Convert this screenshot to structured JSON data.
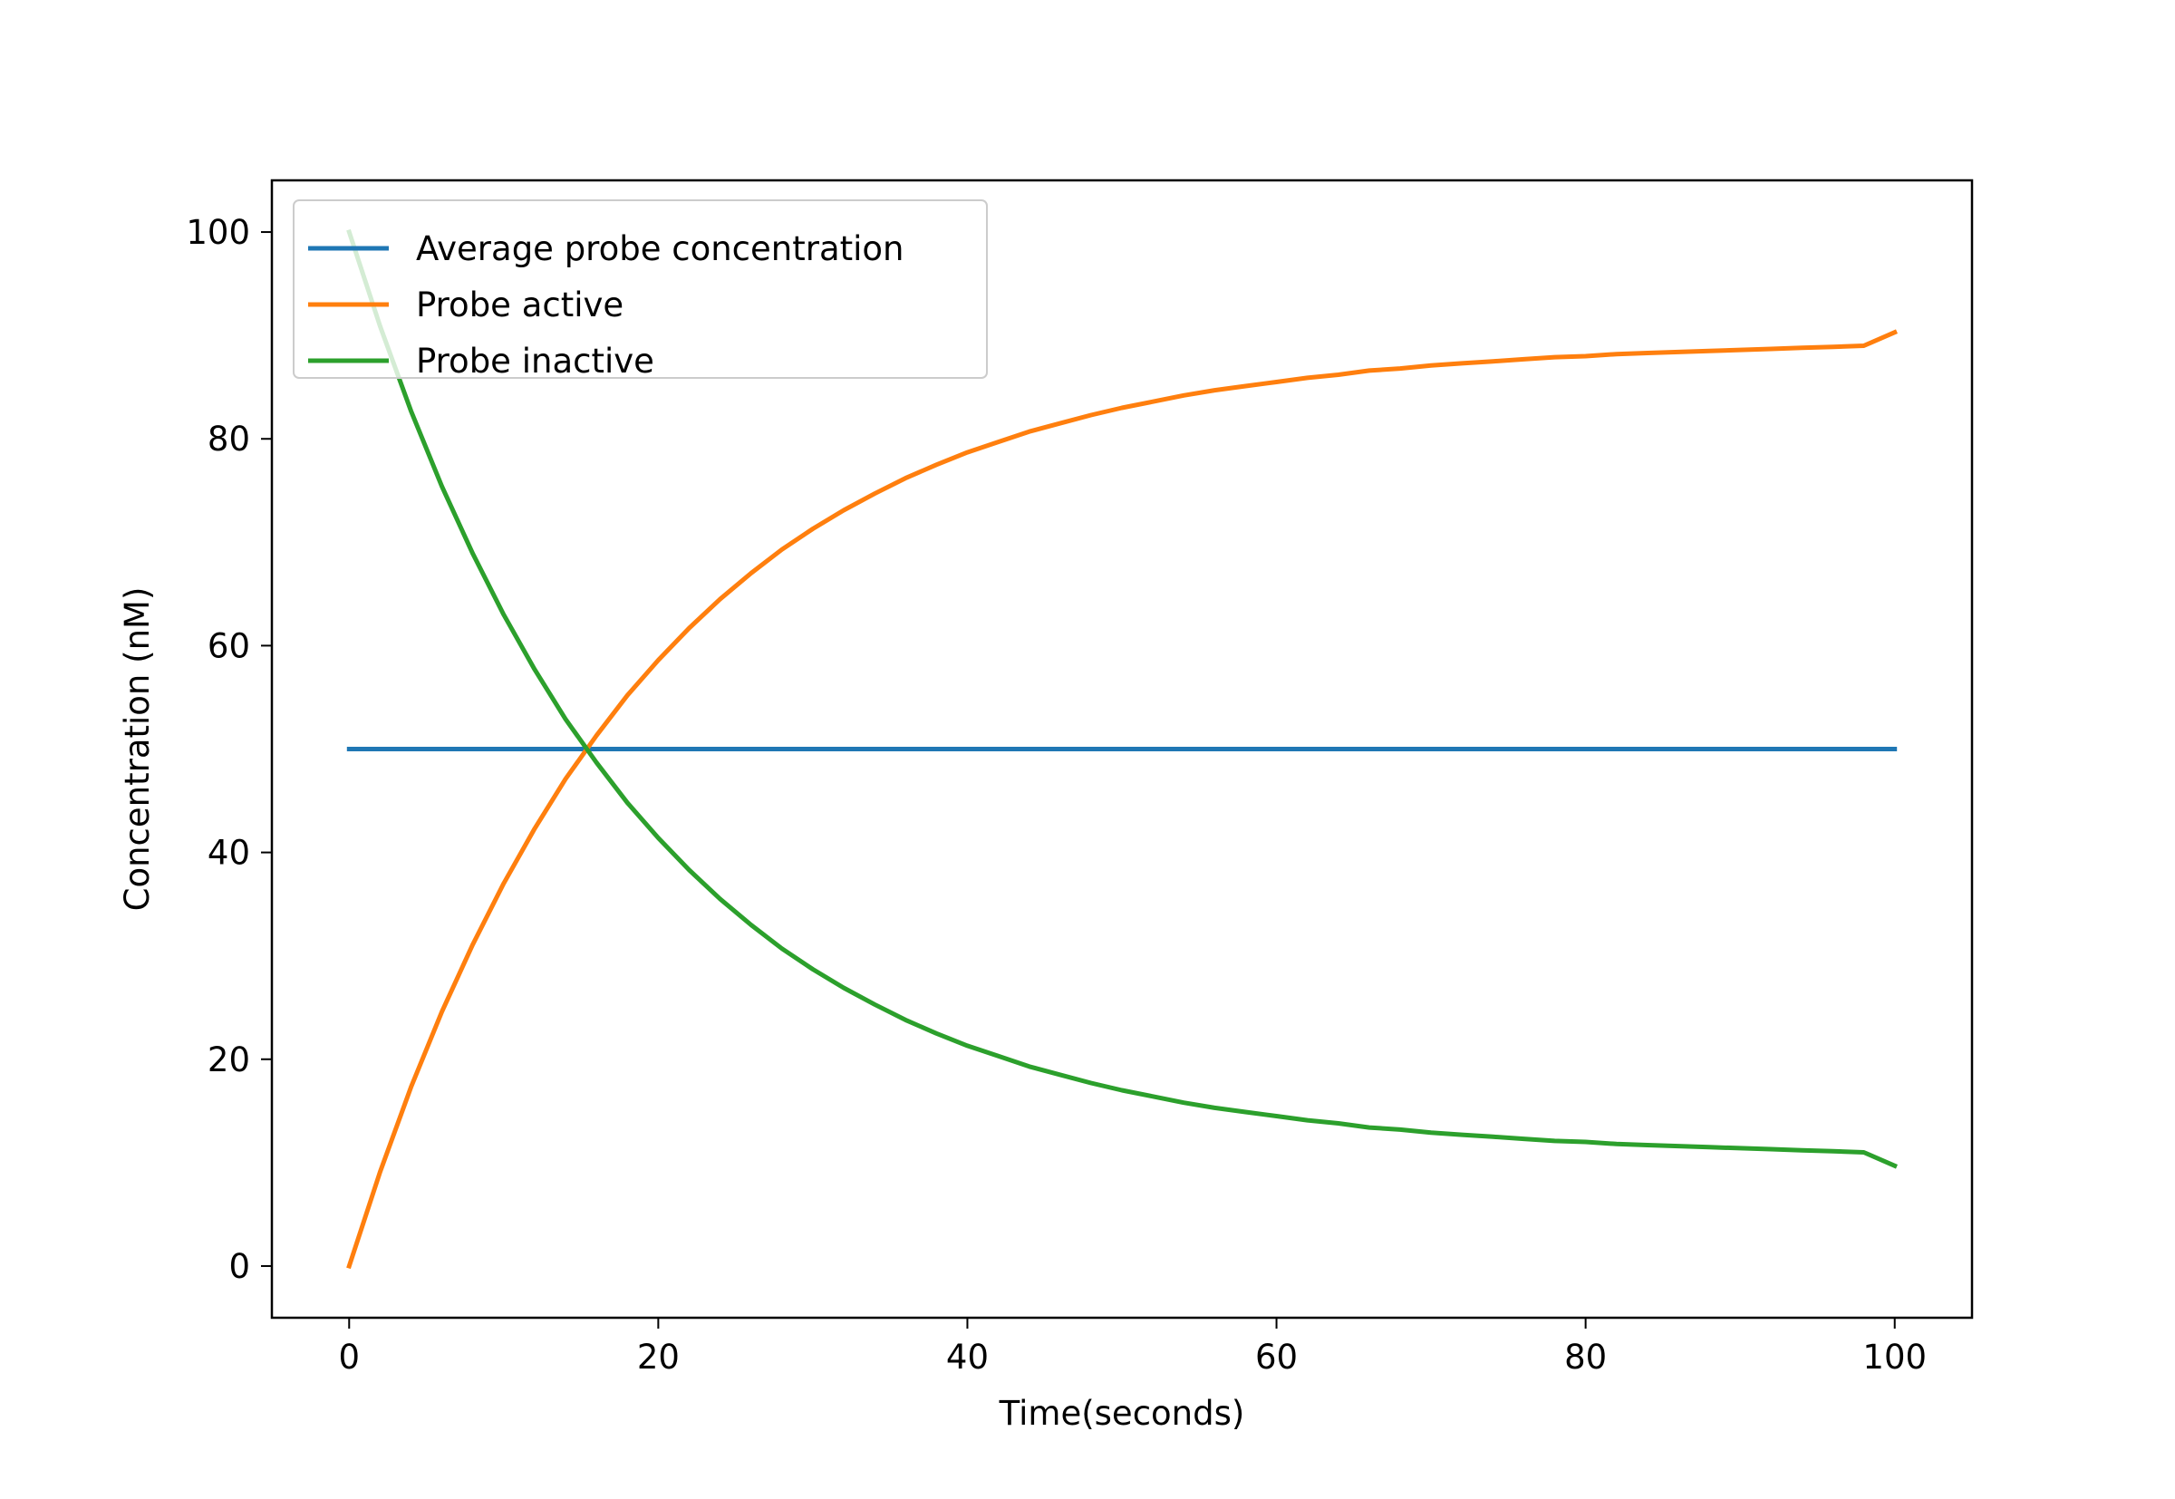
{
  "chart_data": {
    "type": "line",
    "title": "",
    "xlabel": "Time(seconds)",
    "ylabel": "Concentration (nM)",
    "xlim": [
      -5,
      105
    ],
    "ylim": [
      -5,
      105
    ],
    "x_ticks": [
      0,
      20,
      40,
      60,
      80,
      100
    ],
    "y_ticks": [
      0,
      20,
      40,
      60,
      80,
      100
    ],
    "grid": false,
    "legend_position": "upper-left",
    "x": [
      0,
      2,
      4,
      6,
      8,
      10,
      12,
      14,
      16,
      18,
      20,
      22,
      24,
      26,
      28,
      30,
      32,
      34,
      36,
      38,
      40,
      42,
      44,
      46,
      48,
      50,
      52,
      54,
      56,
      58,
      60,
      62,
      64,
      66,
      68,
      70,
      72,
      74,
      76,
      78,
      80,
      82,
      84,
      86,
      88,
      90,
      92,
      94,
      96,
      98,
      100
    ],
    "series": [
      {
        "name": "Average probe concentration",
        "color": "#1f77b4",
        "values": [
          50,
          50,
          50,
          50,
          50,
          50,
          50,
          50,
          50,
          50,
          50,
          50,
          50,
          50,
          50,
          50,
          50,
          50,
          50,
          50,
          50,
          50,
          50,
          50,
          50,
          50,
          50,
          50,
          50,
          50,
          50,
          50,
          50,
          50,
          50,
          50,
          50,
          50,
          50,
          50,
          50,
          50,
          50,
          50,
          50,
          50,
          50,
          50,
          50,
          50,
          50
        ]
      },
      {
        "name": "Probe active",
        "color": "#ff7f0e",
        "values": [
          0,
          9.1,
          17.3,
          24.6,
          31.1,
          37.0,
          42.3,
          47.1,
          51.3,
          55.2,
          58.6,
          61.7,
          64.5,
          67.0,
          69.3,
          71.3,
          73.1,
          74.7,
          76.2,
          77.5,
          78.7,
          79.7,
          80.7,
          81.5,
          82.3,
          83.0,
          83.6,
          84.2,
          84.7,
          85.1,
          85.5,
          85.9,
          86.2,
          86.6,
          86.8,
          87.1,
          87.3,
          87.5,
          87.7,
          87.9,
          88.0,
          88.2,
          88.3,
          88.4,
          88.5,
          88.6,
          88.7,
          88.8,
          88.9,
          89.0,
          90.3
        ]
      },
      {
        "name": "Probe inactive",
        "color": "#2ca02c",
        "values": [
          100,
          90.9,
          82.7,
          75.4,
          68.9,
          63.0,
          57.7,
          52.9,
          48.7,
          44.8,
          41.4,
          38.3,
          35.5,
          33.0,
          30.7,
          28.7,
          26.9,
          25.3,
          23.8,
          22.5,
          21.3,
          20.3,
          19.3,
          18.5,
          17.7,
          17.0,
          16.4,
          15.8,
          15.3,
          14.9,
          14.5,
          14.1,
          13.8,
          13.4,
          13.2,
          12.9,
          12.7,
          12.5,
          12.3,
          12.1,
          12.0,
          11.8,
          11.7,
          11.6,
          11.5,
          11.4,
          11.3,
          11.2,
          11.1,
          11.0,
          9.7
        ]
      }
    ]
  }
}
